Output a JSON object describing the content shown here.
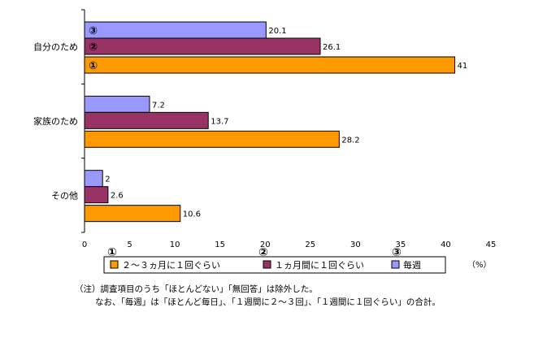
{
  "chart_data": {
    "type": "bar",
    "orientation": "horizontal",
    "categories": [
      "自分のため",
      "家族のため",
      "その他"
    ],
    "series": [
      {
        "name": "２～３ヵ月に１回ぐらい",
        "marker": "①",
        "color": "#FF9900",
        "values": [
          41,
          28.2,
          10.6
        ]
      },
      {
        "name": "１ヵ月間に１回ぐらい",
        "marker": "②",
        "color": "#993366",
        "values": [
          26.1,
          13.7,
          2.6
        ]
      },
      {
        "name": "毎週",
        "marker": "③",
        "color": "#9999FF",
        "values": [
          20.1,
          7.2,
          2
        ]
      }
    ],
    "x_ticks": [
      "0",
      "5",
      "10",
      "15",
      "20",
      "25",
      "30",
      "35",
      "40",
      "45"
    ],
    "xlim": [
      0,
      45
    ],
    "unit_label": "（%）",
    "data_labels": true,
    "legend_position": "bottom",
    "grid": false
  },
  "notes": {
    "line1": "（注）調査項目のうち「ほとんどない」「無回答」は除外した。",
    "line2": "なお、「毎週」は「ほとんど毎日」、「１週間に２～３回」、「１週間に１回ぐらい」の合計。"
  }
}
